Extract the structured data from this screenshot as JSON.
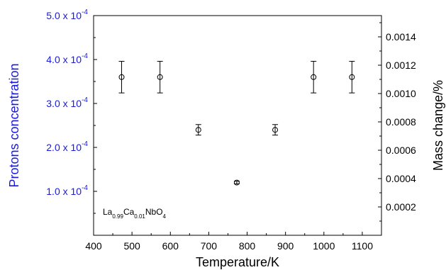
{
  "chart_data": {
    "type": "scatter",
    "title": "",
    "xlabel": "Temperature/K",
    "ylabel_left": "Protons concentration",
    "ylabel_right": "Mass change/%",
    "xlim": [
      400,
      1150
    ],
    "ylim_left": [
      0,
      0.0005
    ],
    "ylim_right": [
      0,
      0.00155
    ],
    "x_ticks": [
      400,
      500,
      600,
      700,
      800,
      900,
      1000,
      1100
    ],
    "x_tick_labels": [
      "400",
      "500",
      "600",
      "700",
      "800",
      "900",
      "1000",
      "1100"
    ],
    "y_left_ticks": [
      0.0001,
      0.0002,
      0.0003,
      0.0004,
      0.0005
    ],
    "y_left_tick_labels": [
      {
        "mantissa": "1.0 x 10",
        "exponent": "-4"
      },
      {
        "mantissa": "2.0 x 10",
        "exponent": "-4"
      },
      {
        "mantissa": "3.0 x 10",
        "exponent": "-4"
      },
      {
        "mantissa": "4.0 x 10",
        "exponent": "-4"
      },
      {
        "mantissa": "5.0 x 10",
        "exponent": "-4"
      }
    ],
    "y_right_ticks": [
      0.0002,
      0.0004,
      0.0006,
      0.0008,
      0.001,
      0.0012,
      0.0014
    ],
    "y_right_tick_labels": [
      "0.0002",
      "0.0004",
      "0.0006",
      "0.0008",
      "0.0010",
      "0.0012",
      "0.0014"
    ],
    "grid": false,
    "series": [
      {
        "x": [
          473,
          573,
          673,
          773,
          873,
          973,
          1073
        ],
        "y": [
          0.00036,
          0.00036,
          0.00024,
          0.00012,
          0.00024,
          0.00036,
          0.00036
        ],
        "yerr": [
          3.6e-05,
          3.6e-05,
          1.2e-05,
          3e-06,
          1.2e-05,
          3.6e-05,
          3.6e-05
        ]
      }
    ],
    "annotation": {
      "parts": [
        {
          "text": "La",
          "sub": false
        },
        {
          "text": "0.99",
          "sub": true
        },
        {
          "text": "Ca",
          "sub": false
        },
        {
          "text": "0.01",
          "sub": true
        },
        {
          "text": "NbO",
          "sub": false
        },
        {
          "text": "4",
          "sub": true
        }
      ]
    },
    "colors": {
      "left_axis": "#1a1adb",
      "axis": "#000000",
      "marker": "#000000"
    }
  }
}
